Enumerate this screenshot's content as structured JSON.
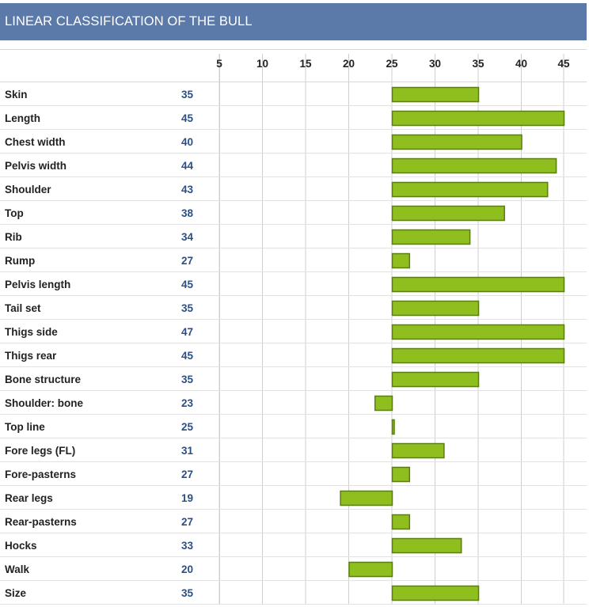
{
  "chart_data": {
    "type": "bar",
    "title": "LINEAR CLASSIFICATION OF THE BULL",
    "baseline": 25,
    "xlim": [
      0,
      46
    ],
    "ticks": [
      5,
      10,
      15,
      20,
      25,
      30,
      35,
      40,
      45
    ],
    "categories": [
      "Skin",
      "Length",
      "Chest width",
      "Pelvis width",
      "Shoulder",
      "Top",
      "Rib",
      "Rump",
      "Pelvis length",
      "Tail set",
      "Thigs side",
      "Thigs rear",
      "Bone structure",
      "Shoulder: bone",
      "Top line",
      "Fore legs (FL)",
      "Fore-pasterns",
      "Rear legs",
      "Rear-pasterns",
      "Hocks",
      "Walk",
      "Size"
    ],
    "values": [
      35,
      45,
      40,
      44,
      43,
      38,
      34,
      27,
      45,
      35,
      47,
      45,
      35,
      23,
      25,
      31,
      27,
      19,
      27,
      33,
      20,
      35
    ],
    "bar_color": "#8fbe1f",
    "bar_border": "#5c7d12",
    "value_color": "#2a4f86",
    "header_color": "#5b7aa9",
    "grid": true
  }
}
